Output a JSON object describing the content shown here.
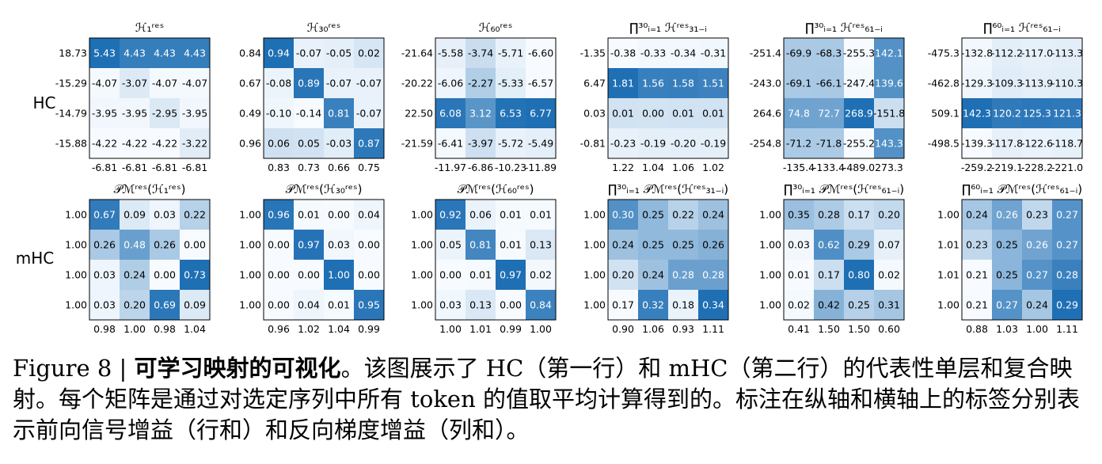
{
  "chart_data": {
    "type": "heatmap",
    "row_labels": [
      "HC",
      "mHC"
    ],
    "panels": [
      {
        "title": "ℋ₁ʳᵉˢ",
        "row": 0,
        "values": [
          [
            5.43,
            4.43,
            4.43,
            4.43
          ],
          [
            -4.07,
            -3.07,
            -4.07,
            -4.07
          ],
          [
            -3.95,
            -3.95,
            -2.95,
            -3.95
          ],
          [
            -4.22,
            -4.22,
            -4.22,
            -3.22
          ]
        ],
        "row_sums": [
          "18.73",
          "-15.29",
          "-14.79",
          "-15.88"
        ],
        "col_sums": [
          "-6.81",
          "-6.81",
          "-6.81",
          "-6.81"
        ]
      },
      {
        "title": "ℋ₃₀ʳᵉˢ",
        "row": 0,
        "values": [
          [
            0.94,
            -0.07,
            -0.05,
            0.02
          ],
          [
            -0.08,
            0.89,
            -0.07,
            -0.07
          ],
          [
            -0.1,
            -0.14,
            0.81,
            -0.07
          ],
          [
            0.06,
            0.05,
            -0.03,
            0.87
          ]
        ],
        "row_sums": [
          "0.84",
          "0.67",
          "0.49",
          "0.96"
        ],
        "col_sums": [
          "0.83",
          "0.73",
          "0.66",
          "0.75"
        ]
      },
      {
        "title": "ℋ₆₀ʳᵉˢ",
        "row": 0,
        "values": [
          [
            -5.58,
            -3.74,
            -5.71,
            -6.6
          ],
          [
            -6.06,
            -2.27,
            -5.33,
            -6.57
          ],
          [
            6.08,
            3.12,
            6.53,
            6.77
          ],
          [
            -6.41,
            -3.97,
            -5.72,
            -5.49
          ]
        ],
        "row_sums": [
          "-21.64",
          "-20.22",
          "22.50",
          "-21.59"
        ],
        "col_sums": [
          "-11.97",
          "-6.86",
          "-10.23",
          "-11.89"
        ]
      },
      {
        "title": "∏³⁰ᵢ₌₁ ℋʳᵉˢ₃₁₋ᵢ",
        "row": 0,
        "values": [
          [
            -0.38,
            -0.33,
            -0.34,
            -0.31
          ],
          [
            1.81,
            1.56,
            1.58,
            1.51
          ],
          [
            0.01,
            -0.0,
            0.01,
            0.01
          ],
          [
            -0.23,
            -0.19,
            -0.2,
            -0.19
          ]
        ],
        "row_sums": [
          "-1.35",
          "6.47",
          "0.03",
          "-0.81"
        ],
        "col_sums": [
          "1.22",
          "1.04",
          "1.06",
          "1.02"
        ]
      },
      {
        "title": "∏³⁰ᵢ₌₁ ℋʳᵉˢ₆₁₋ᵢ",
        "row": 0,
        "values": [
          [
            -69.9,
            -68.3,
            -255.3,
            142.1
          ],
          [
            -69.1,
            -66.1,
            -247.4,
            139.6
          ],
          [
            74.8,
            72.7,
            268.9,
            -151.8
          ],
          [
            -71.2,
            -71.8,
            -255.2,
            143.3
          ]
        ],
        "row_sums": [
          "-251.4",
          "-243.0",
          "264.6",
          "-254.8"
        ],
        "col_sums": [
          "-135.4",
          "-133.4",
          "-489.0",
          "273.3"
        ]
      },
      {
        "title": "∏⁶⁰ᵢ₌₁ ℋʳᵉˢ₆₁₋ᵢ",
        "row": 0,
        "values": [
          [
            -132.8,
            -112.2,
            -117.0,
            -113.3
          ],
          [
            -129.3,
            -109.3,
            -113.9,
            -110.3
          ],
          [
            142.3,
            120.2,
            125.3,
            121.3
          ],
          [
            -139.3,
            -117.8,
            -122.6,
            -118.7
          ]
        ],
        "row_sums": [
          "-475.3",
          "-462.8",
          "509.1",
          "-498.5"
        ],
        "col_sums": [
          "-259.2",
          "-219.1",
          "-228.2",
          "-221.0"
        ]
      },
      {
        "title": "𝒫ℳʳᵉˢ(ℋ₁ʳᵉˢ)",
        "row": 1,
        "values": [
          [
            0.67,
            0.09,
            0.03,
            0.22
          ],
          [
            0.26,
            0.48,
            0.26,
            0.0
          ],
          [
            0.03,
            0.24,
            0.0,
            0.73
          ],
          [
            0.03,
            0.2,
            0.69,
            0.09
          ]
        ],
        "row_sums": [
          "1.00",
          "1.00",
          "1.00",
          "1.00"
        ],
        "col_sums": [
          "0.98",
          "1.00",
          "0.98",
          "1.04"
        ]
      },
      {
        "title": "𝒫ℳʳᵉˢ(ℋ₃₀ʳᵉˢ)",
        "row": 1,
        "values": [
          [
            0.96,
            0.01,
            0.0,
            0.04
          ],
          [
            0.0,
            0.97,
            0.03,
            0.0
          ],
          [
            0.0,
            0.0,
            1.0,
            0.0
          ],
          [
            0.0,
            0.04,
            0.01,
            0.95
          ]
        ],
        "row_sums": [
          "1.00",
          "1.00",
          "1.00",
          "1.00"
        ],
        "col_sums": [
          "0.96",
          "1.02",
          "1.04",
          "0.99"
        ]
      },
      {
        "title": "𝒫ℳʳᵉˢ(ℋ₆₀ʳᵉˢ)",
        "row": 1,
        "values": [
          [
            0.92,
            0.06,
            0.01,
            0.01
          ],
          [
            0.05,
            0.81,
            0.01,
            0.13
          ],
          [
            0.0,
            0.01,
            0.97,
            0.02
          ],
          [
            0.03,
            0.13,
            0.0,
            0.84
          ]
        ],
        "row_sums": [
          "1.00",
          "1.00",
          "1.00",
          "1.00"
        ],
        "col_sums": [
          "1.00",
          "1.01",
          "0.99",
          "1.00"
        ]
      },
      {
        "title": "∏³⁰ᵢ₌₁ 𝒫ℳʳᵉˢ(ℋʳᵉˢ₃₁₋ᵢ)",
        "row": 1,
        "values": [
          [
            0.3,
            0.25,
            0.22,
            0.24
          ],
          [
            0.24,
            0.25,
            0.25,
            0.26
          ],
          [
            0.2,
            0.24,
            0.28,
            0.28
          ],
          [
            0.17,
            0.32,
            0.18,
            0.34
          ]
        ],
        "row_sums": [
          "1.00",
          "1.00",
          "1.00",
          "1.00"
        ],
        "col_sums": [
          "0.90",
          "1.06",
          "0.93",
          "1.11"
        ]
      },
      {
        "title": "∏³⁰ᵢ₌₁ 𝒫ℳʳᵉˢ(ℋʳᵉˢ₆₁₋ᵢ)",
        "row": 1,
        "values": [
          [
            0.35,
            0.28,
            0.17,
            0.2
          ],
          [
            0.03,
            0.62,
            0.29,
            0.07
          ],
          [
            0.01,
            0.17,
            0.8,
            0.02
          ],
          [
            0.02,
            0.42,
            0.25,
            0.31
          ]
        ],
        "row_sums": [
          "1.00",
          "1.00",
          "1.00",
          "1.00"
        ],
        "col_sums": [
          "0.41",
          "1.50",
          "1.50",
          "0.60"
        ]
      },
      {
        "title": "∏⁶⁰ᵢ₌₁ 𝒫ℳʳᵉˢ(ℋʳᵉˢ₆₁₋ᵢ)",
        "row": 1,
        "values": [
          [
            0.24,
            0.26,
            0.23,
            0.27
          ],
          [
            0.23,
            0.25,
            0.26,
            0.27
          ],
          [
            0.21,
            0.25,
            0.27,
            0.28
          ],
          [
            0.21,
            0.27,
            0.24,
            0.29
          ]
        ],
        "row_sums": [
          "1.00",
          "1.01",
          "1.01",
          "1.00"
        ],
        "col_sums": [
          "0.88",
          "1.03",
          "1.00",
          "1.11"
        ]
      }
    ],
    "colormap": {
      "low": "#f7fbff",
      "high": "#1f6fb4"
    }
  },
  "caption": {
    "prefix": "Figure 8 | ",
    "bold": "可学习映射的可视化",
    "body": "。该图展示了 HC（第一行）和 mHC（第二行）的代表性单层和复合映射。每个矩阵是通过对选定序列中所有 token 的值取平均计算得到的。标注在纵轴和横轴上的标签分别表示前向信号增益（行和）和反向梯度增益（列和）。"
  }
}
